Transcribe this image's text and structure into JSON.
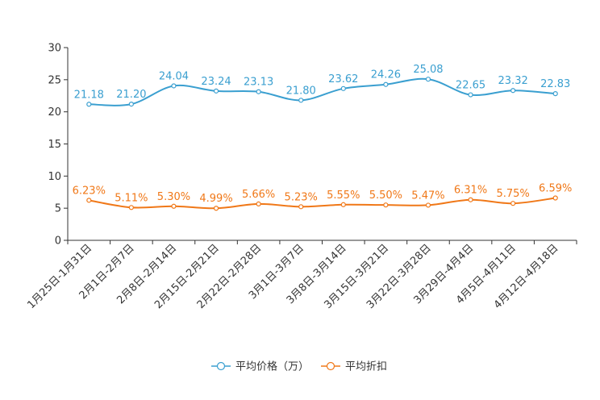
{
  "chart_data": {
    "type": "line",
    "title": "",
    "xlabel": "",
    "ylabel": "",
    "ylim": [
      0,
      30
    ],
    "yticks": [
      0,
      5,
      10,
      15,
      20,
      25,
      30
    ],
    "grid": false,
    "legend_position": "bottom-center",
    "categories": [
      "1月25日-1月31日",
      "2月1日-2月7日",
      "2月8日-2月14日",
      "2月15日-2月21日",
      "2月22日-2月28日",
      "3月1日-3月7日",
      "3月8日-3月14日",
      "3月15日-3月21日",
      "3月22日-3月28日",
      "3月29日-4月4日",
      "4月5日-4月11日",
      "4月12日-4月18日"
    ],
    "series": [
      {
        "name": "平均价格（万）",
        "color": "#3a9fd0",
        "values": [
          21.18,
          21.2,
          24.04,
          23.24,
          23.13,
          21.8,
          23.62,
          24.26,
          25.08,
          22.65,
          23.32,
          22.83
        ],
        "labels": [
          "21.18",
          "21.20",
          "24.04",
          "23.24",
          "23.13",
          "21.80",
          "23.62",
          "24.26",
          "25.08",
          "22.65",
          "23.32",
          "22.83"
        ]
      },
      {
        "name": "平均折扣",
        "color": "#f07818",
        "values": [
          6.23,
          5.11,
          5.3,
          4.99,
          5.66,
          5.23,
          5.55,
          5.5,
          5.47,
          6.31,
          5.75,
          6.59
        ],
        "labels": [
          "6.23%",
          "5.11%",
          "5.30%",
          "4.99%",
          "5.66%",
          "5.23%",
          "5.55%",
          "5.50%",
          "5.47%",
          "6.31%",
          "5.75%",
          "6.59%"
        ]
      }
    ]
  }
}
